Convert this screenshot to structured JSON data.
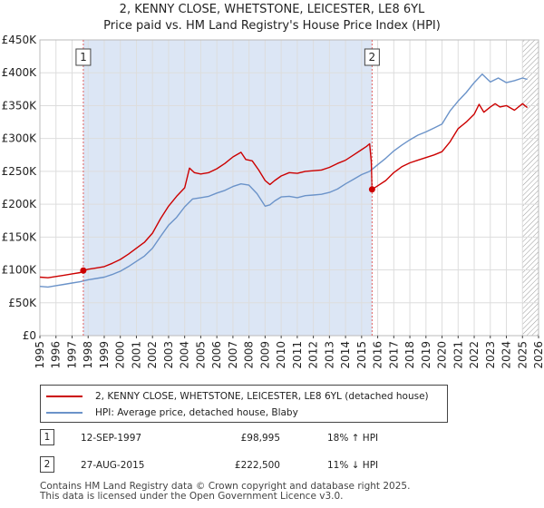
{
  "chart_data": {
    "type": "line",
    "title": "2, KENNY CLOSE, WHETSTONE, LEICESTER, LE8 6YL",
    "subtitle": "Price paid vs. HM Land Registry's House Price Index (HPI)",
    "xlabel": "",
    "ylabel": "",
    "xlim": [
      1995,
      2026
    ],
    "ylim": [
      0,
      450000
    ],
    "y_ticks": [
      0,
      50000,
      100000,
      150000,
      200000,
      250000,
      300000,
      350000,
      400000,
      450000
    ],
    "y_tick_labels": [
      "£0",
      "£50K",
      "£100K",
      "£150K",
      "£200K",
      "£250K",
      "£300K",
      "£350K",
      "£400K",
      "£450K"
    ],
    "x_ticks": [
      "1995",
      "1996",
      "1997",
      "1998",
      "1999",
      "2000",
      "2001",
      "2002",
      "2003",
      "2004",
      "2005",
      "2006",
      "2007",
      "2008",
      "2009",
      "2010",
      "2011",
      "2012",
      "2013",
      "2014",
      "2015",
      "2016",
      "2017",
      "2018",
      "2019",
      "2020",
      "2021",
      "2022",
      "2023",
      "2024",
      "2025",
      "2026"
    ],
    "grid": true,
    "shaded_region": {
      "from": 1997.7,
      "to": 2015.65,
      "color": "#dce6f5"
    },
    "forecast_hatch_from": 2025.0,
    "series": [
      {
        "name": "2, KENNY CLOSE, WHETSTONE, LEICESTER, LE8 6YL (detached house)",
        "color": "#cc0000",
        "x": [
          1995,
          1995.5,
          1996,
          1996.5,
          1997,
          1997.5,
          1997.7,
          1998,
          1998.5,
          1999,
          1999.5,
          2000,
          2000.5,
          2001,
          2001.5,
          2002,
          2002.5,
          2003,
          2003.5,
          2004,
          2004.3,
          2004.6,
          2005,
          2005.5,
          2006,
          2006.5,
          2007,
          2007.5,
          2007.8,
          2008.2,
          2008.6,
          2009,
          2009.3,
          2009.6,
          2010,
          2010.5,
          2011,
          2011.5,
          2012,
          2012.5,
          2013,
          2013.5,
          2014,
          2014.5,
          2015,
          2015.3,
          2015.5,
          2015.6,
          2015.65,
          2016,
          2016.5,
          2017,
          2017.5,
          2018,
          2018.5,
          2019,
          2019.5,
          2020,
          2020.5,
          2021,
          2021.5,
          2022,
          2022.3,
          2022.6,
          2023,
          2023.3,
          2023.6,
          2024,
          2024.5,
          2025,
          2025.3
        ],
        "values": [
          89000,
          88000,
          90000,
          92000,
          94000,
          96000,
          98995,
          101000,
          103000,
          105000,
          110000,
          116000,
          124000,
          133000,
          142000,
          156000,
          178000,
          197000,
          212000,
          225000,
          255000,
          248000,
          246000,
          248000,
          254000,
          262000,
          272000,
          279000,
          268000,
          266000,
          252000,
          236000,
          230000,
          236000,
          243000,
          248000,
          247000,
          250000,
          251000,
          252000,
          256000,
          262000,
          267000,
          275000,
          283000,
          288000,
          292000,
          265000,
          222500,
          228000,
          236000,
          248000,
          257000,
          263000,
          267000,
          271000,
          275000,
          280000,
          295000,
          315000,
          325000,
          337000,
          352000,
          340000,
          348000,
          353000,
          348000,
          350000,
          343000,
          353000,
          347000
        ]
      },
      {
        "name": "HPI: Average price, detached house, Blaby",
        "color": "#6b93c9",
        "x": [
          1995,
          1995.5,
          1996,
          1996.5,
          1997,
          1997.5,
          1998,
          1998.5,
          1999,
          1999.5,
          2000,
          2000.5,
          2001,
          2001.5,
          2002,
          2002.5,
          2003,
          2003.5,
          2004,
          2004.5,
          2005,
          2005.5,
          2006,
          2006.5,
          2007,
          2007.5,
          2008,
          2008.5,
          2009,
          2009.3,
          2009.6,
          2010,
          2010.5,
          2011,
          2011.5,
          2012,
          2012.5,
          2013,
          2013.5,
          2014,
          2014.5,
          2015,
          2015.5,
          2016,
          2016.5,
          2017,
          2017.5,
          2018,
          2018.5,
          2019,
          2019.5,
          2020,
          2020.5,
          2021,
          2021.5,
          2022,
          2022.5,
          2023,
          2023.5,
          2024,
          2024.5,
          2025,
          2025.3
        ],
        "values": [
          75000,
          74000,
          76000,
          78000,
          80000,
          82000,
          85000,
          87000,
          89000,
          93000,
          98000,
          105000,
          113000,
          121000,
          133000,
          151000,
          168000,
          180000,
          196000,
          208000,
          210000,
          212000,
          217000,
          221000,
          227000,
          231000,
          229000,
          216000,
          197000,
          199000,
          205000,
          211000,
          212000,
          210000,
          213000,
          214000,
          215000,
          218000,
          223000,
          231000,
          238000,
          245000,
          250000,
          260000,
          270000,
          281000,
          290000,
          298000,
          305000,
          310000,
          316000,
          322000,
          342000,
          357000,
          370000,
          385000,
          398000,
          386000,
          392000,
          385000,
          388000,
          392000,
          390000
        ]
      }
    ],
    "annotations": [
      {
        "label": "1",
        "x": 1997.7,
        "value": 98995
      },
      {
        "label": "2",
        "x": 2015.65,
        "value": 222500
      }
    ]
  },
  "legend": {
    "series1": "2, KENNY CLOSE, WHETSTONE, LEICESTER, LE8 6YL (detached house)",
    "series2": "HPI: Average price, detached house, Blaby"
  },
  "transactions": [
    {
      "num": "1",
      "date": "12-SEP-1997",
      "price": "£98,995",
      "hpi": "18% ↑ HPI"
    },
    {
      "num": "2",
      "date": "27-AUG-2015",
      "price": "£222,500",
      "hpi": "11% ↓ HPI"
    }
  ],
  "footer": {
    "line1": "Contains HM Land Registry data © Crown copyright and database right 2025.",
    "line2": "This data is licensed under the Open Government Licence v3.0."
  }
}
